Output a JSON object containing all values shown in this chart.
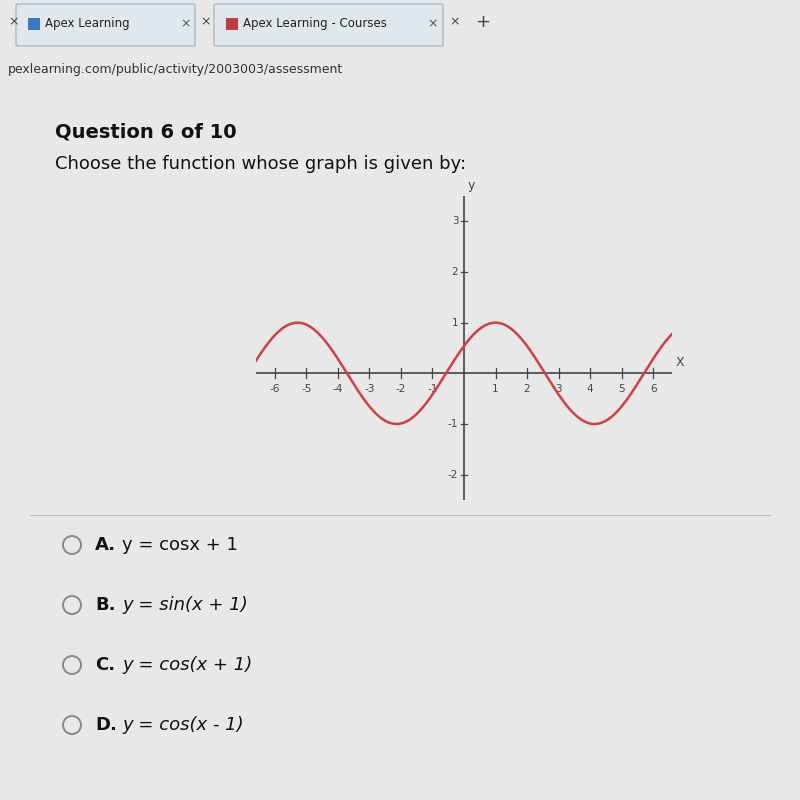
{
  "question_header": "Question 6 of 10",
  "question_text": "Choose the function whose graph is given by:",
  "curve_color": "#d04040",
  "curve_linewidth": 1.8,
  "x_min": -6.6,
  "x_max": 6.6,
  "y_min": -2.5,
  "y_max": 3.5,
  "x_ticks": [
    -6,
    -5,
    -4,
    -3,
    -2,
    -1,
    1,
    2,
    3,
    4,
    5,
    6
  ],
  "y_ticks": [
    -2,
    -1,
    1,
    2,
    3
  ],
  "x_label": "X",
  "y_label": "y",
  "choices": [
    {
      "letter": "A.",
      "formula_bold": "y = cosx + 1",
      "formula_italic": ""
    },
    {
      "letter": "B.",
      "formula_bold": "",
      "formula_italic": "y = sin(x + 1)"
    },
    {
      "letter": "C.",
      "formula_bold": "",
      "formula_italic": "y = cos(x + 1)"
    },
    {
      "letter": "D.",
      "formula_bold": "",
      "formula_italic": "y = cos(x - 1)"
    }
  ],
  "bg_color": "#e8e8e8",
  "content_bg": "#f2f0ee",
  "tab_active_color": "#e0e8ed",
  "tab_inactive_color": "#b8cdd6",
  "tab_bar_color": "#b0c8d4",
  "url_bar_color": "#d8d8d8",
  "separator_color": "#c0c0c0",
  "axis_color": "#444444",
  "tick_color": "#444444",
  "text_color": "#111111",
  "radio_color": "#888888"
}
